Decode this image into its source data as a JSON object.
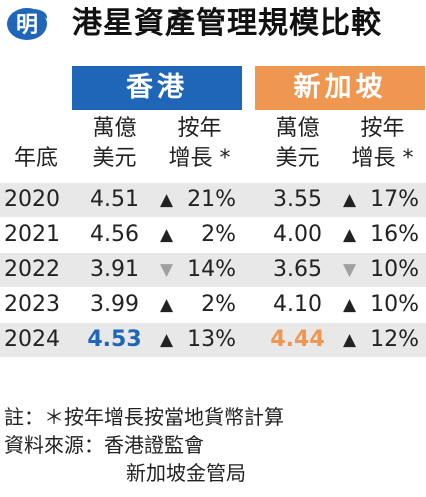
{
  "title": "港星資產管理規模比較",
  "logo": {
    "glyph": "明",
    "icon": "ming-pao-logo-icon"
  },
  "regions": {
    "hk": "香港",
    "sg": "新加坡"
  },
  "columns": {
    "year": "年底",
    "value_line1": "萬億",
    "value_line2": "美元",
    "growth_line1": "按年",
    "growth_line2": "增長 *"
  },
  "colors": {
    "hk": "#1f66b8",
    "sg": "#ef9650",
    "up": "#222222",
    "down": "#a0a0a0"
  },
  "chart_data": {
    "type": "table",
    "title": "港星資產管理規模比較",
    "columns": [
      "年底",
      "香港 萬億美元",
      "香港 按年增長 *",
      "新加坡 萬億美元",
      "新加坡 按年增長 *"
    ],
    "rows": [
      {
        "year": "2020",
        "hk_value": "4.51",
        "hk_dir": "up",
        "hk_growth": "21%",
        "sg_value": "3.55",
        "sg_dir": "up",
        "sg_growth": "17%"
      },
      {
        "year": "2021",
        "hk_value": "4.56",
        "hk_dir": "up",
        "hk_growth": "2%",
        "sg_value": "4.00",
        "sg_dir": "up",
        "sg_growth": "16%"
      },
      {
        "year": "2022",
        "hk_value": "3.91",
        "hk_dir": "down",
        "hk_growth": "14%",
        "sg_value": "3.65",
        "sg_dir": "down",
        "sg_growth": "10%"
      },
      {
        "year": "2023",
        "hk_value": "3.99",
        "hk_dir": "up",
        "hk_growth": "2%",
        "sg_value": "4.10",
        "sg_dir": "up",
        "sg_growth": "10%"
      },
      {
        "year": "2024",
        "hk_value": "4.53",
        "hk_dir": "up",
        "hk_growth": "13%",
        "sg_value": "4.44",
        "sg_dir": "up",
        "sg_growth": "12%"
      }
    ]
  },
  "notes": {
    "note1": "註：＊按年增長按當地貨幣計算",
    "source_line1": "資料來源：香港證監會",
    "source_line2": "新加坡金管局"
  }
}
